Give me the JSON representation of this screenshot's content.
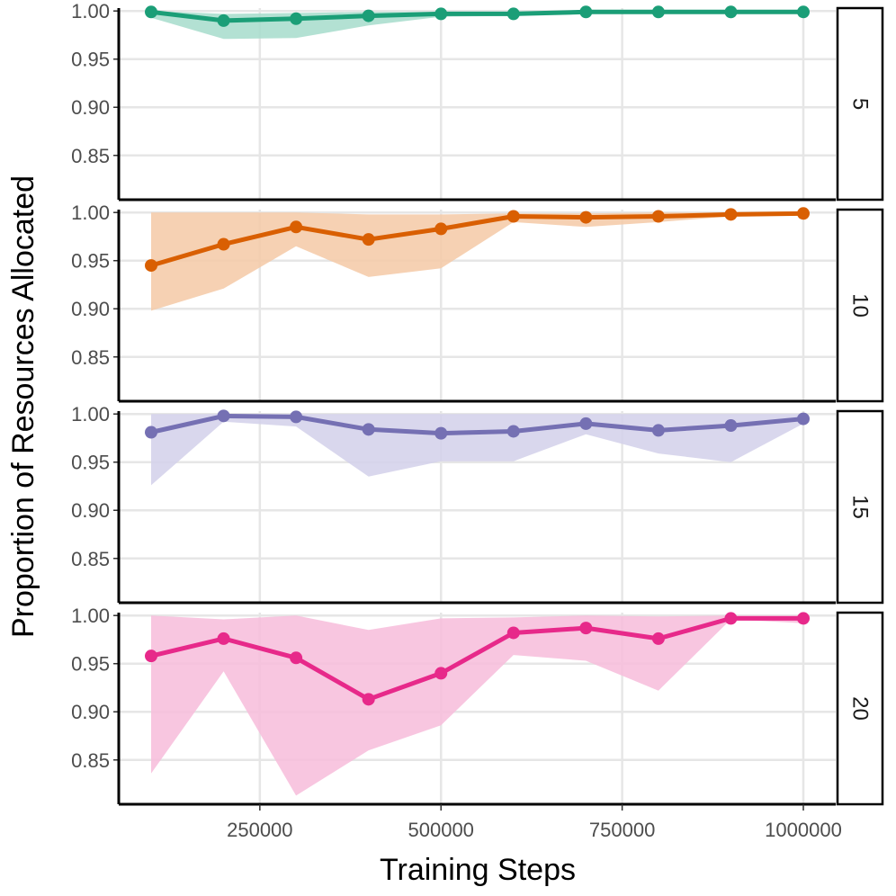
{
  "chart_data": {
    "type": "line",
    "xlabel": "Training Steps",
    "ylabel": "Proportion of Resources Allocated",
    "xlim": [
      60000,
      1040000
    ],
    "x_ticks": [
      250000,
      500000,
      750000,
      1000000
    ],
    "x_tick_labels": [
      "250000",
      "500000",
      "750000",
      "1000000"
    ],
    "y_ticks": [
      0.85,
      0.9,
      0.95,
      1.0
    ],
    "y_tick_labels": [
      "0.85",
      "0.90",
      "0.95",
      "1.00"
    ],
    "ylim": [
      0.804,
      1.003
    ],
    "x": [
      100000,
      200000,
      300000,
      400000,
      500000,
      600000,
      700000,
      800000,
      900000,
      1000000
    ],
    "grid": true,
    "legend": "none",
    "panels": [
      {
        "strip": "5",
        "color": "#1b9e77",
        "fill": "#a6dccb",
        "values": [
          0.999,
          0.99,
          0.992,
          0.995,
          0.997,
          0.997,
          0.999,
          0.999,
          0.999,
          0.999
        ],
        "lower": [
          0.993,
          0.971,
          0.972,
          0.985,
          0.994,
          0.995,
          0.998,
          0.998,
          0.998,
          0.998
        ],
        "upper": [
          1.0,
          0.997,
          0.998,
          0.999,
          0.999,
          0.999,
          1.0,
          1.0,
          1.0,
          1.0
        ]
      },
      {
        "strip": "10",
        "color": "#d95f02",
        "fill": "#f5c9a6",
        "values": [
          0.945,
          0.967,
          0.985,
          0.972,
          0.983,
          0.996,
          0.995,
          0.996,
          0.998,
          0.999
        ],
        "lower": [
          0.898,
          0.921,
          0.965,
          0.933,
          0.942,
          0.99,
          0.985,
          0.99,
          0.996,
          0.998
        ],
        "upper": [
          1.0,
          1.0,
          1.0,
          0.998,
          0.998,
          0.999,
          0.999,
          1.0,
          1.0,
          1.0
        ]
      },
      {
        "strip": "15",
        "color": "#7570b3",
        "fill": "#d2d0ea",
        "values": [
          0.981,
          0.998,
          0.997,
          0.984,
          0.98,
          0.982,
          0.99,
          0.983,
          0.988,
          0.995
        ],
        "lower": [
          0.926,
          0.992,
          0.987,
          0.935,
          0.951,
          0.951,
          0.979,
          0.959,
          0.95,
          0.99
        ],
        "upper": [
          1.0,
          1.0,
          1.0,
          1.0,
          1.0,
          1.0,
          1.0,
          1.0,
          1.0,
          1.0
        ]
      },
      {
        "strip": "20",
        "color": "#e7298a",
        "fill": "#f7bcda",
        "values": [
          0.958,
          0.976,
          0.956,
          0.913,
          0.94,
          0.982,
          0.987,
          0.976,
          0.997,
          0.997
        ],
        "lower": [
          0.836,
          0.942,
          0.813,
          0.86,
          0.886,
          0.959,
          0.953,
          0.922,
          0.996,
          0.992
        ],
        "upper": [
          1.0,
          0.996,
          1.0,
          0.985,
          0.997,
          0.998,
          1.0,
          0.999,
          1.0,
          1.0
        ]
      }
    ]
  }
}
